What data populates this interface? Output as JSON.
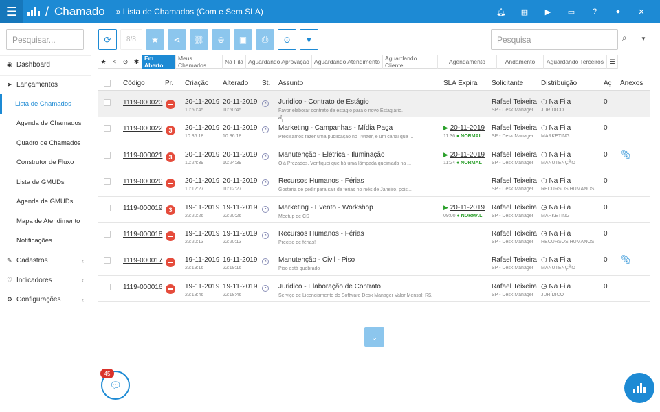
{
  "header": {
    "app_title": "Chamado",
    "separator": "/",
    "breadcrumb": "» Lista de Chamados (Com e Sem SLA)",
    "icons": [
      "bell-icon",
      "calculator-icon",
      "play-icon",
      "monitor-icon",
      "help-icon",
      "user-icon",
      "close-icon"
    ]
  },
  "sidebar": {
    "search_placeholder": "Pesquisar...",
    "items": [
      {
        "label": "Dashboard",
        "icon": "dashboard-icon"
      },
      {
        "label": "Lançamentos",
        "icon": "send-icon"
      },
      {
        "label": "Lista de Chamados"
      },
      {
        "label": "Agenda de Chamados"
      },
      {
        "label": "Quadro de Chamados"
      },
      {
        "label": "Construtor de Fluxo"
      },
      {
        "label": "Lista de GMUDs"
      },
      {
        "label": "Agenda de GMUDs"
      },
      {
        "label": "Mapa de Atendimento"
      },
      {
        "label": "Notificações"
      },
      {
        "label": "Cadastros",
        "icon": "edit-icon"
      },
      {
        "label": "Indicadores",
        "icon": "heart-icon"
      },
      {
        "label": "Configurações",
        "icon": "gear-icon"
      }
    ]
  },
  "toolbar": {
    "counter": "8/8",
    "search_placeholder": "Pesquisa"
  },
  "tabs": {
    "symbols": [
      "★",
      "<",
      "⊙",
      "✱"
    ],
    "labels": [
      "Em Aberto",
      "Meus Chamados",
      "Na Fila",
      "Aguardando Aprovação",
      "Aguardando Atendimento",
      "Aguardando Cliente",
      "Agendamento",
      "Andamento",
      "Aguardando Terceiros"
    ],
    "menu": "☰"
  },
  "table": {
    "headers": {
      "code": "Código",
      "priority": "Pr.",
      "created": "Criação",
      "changed": "Alterado",
      "status": "St.",
      "subject": "Assunto",
      "sla": "SLA Expira",
      "requester": "Solicitante",
      "distribution": "Distribuição",
      "actions": "Aç",
      "attachments": "Anexos"
    },
    "rows": [
      {
        "code": "1119-000023",
        "priority": "",
        "created_date": "20-11-2019",
        "created_time": "10:50:45",
        "changed_date": "20-11-2019",
        "changed_time": "10:50:45",
        "subject": "Juridico - Contrato de Estágio",
        "desc": "Favor elaborar contrato de estágio para o novo Estagiário.",
        "sla_date": "",
        "sla_time": "",
        "sla_status": "",
        "requester": "Rafael Teixeira",
        "requester_role": "SP - Desk Manager",
        "dist": "Na Fila",
        "dist_team": "JURÍDICO",
        "ac": "0",
        "attach": false
      },
      {
        "code": "1119-000022",
        "priority": "3",
        "created_date": "20-11-2019",
        "created_time": "10:36:18",
        "changed_date": "20-11-2019",
        "changed_time": "10:36:18",
        "subject": "Marketing - Campanhas - Mídia Paga",
        "desc": "Precisamos fazer uma publicação no Twitter, é um canal que ...",
        "sla_date": "20-11-2019",
        "sla_time": "11:36",
        "sla_status": "NORMAL",
        "requester": "Rafael Teixeira",
        "requester_role": "SP - Desk Manager",
        "dist": "Na Fila",
        "dist_team": "MARKETING",
        "ac": "0",
        "attach": false
      },
      {
        "code": "1119-000021",
        "priority": "3",
        "created_date": "20-11-2019",
        "created_time": "10:24:39",
        "changed_date": "20-11-2019",
        "changed_time": "10:24:39",
        "subject": "Manutenção - Elétrica - Iluminação",
        "desc": "Olá Prezados, Verifiquei que há uma lâmpada queimada na ...",
        "sla_date": "20-11-2019",
        "sla_time": "11:24",
        "sla_status": "NORMAL",
        "requester": "Rafael Teixeira",
        "requester_role": "SP - Desk Manager",
        "dist": "Na Fila",
        "dist_team": "MANUTENÇÃO",
        "ac": "0",
        "attach": true
      },
      {
        "code": "1119-000020",
        "priority": "",
        "created_date": "20-11-2019",
        "created_time": "10:12:27",
        "changed_date": "20-11-2019",
        "changed_time": "10:12:27",
        "subject": "Recursos Humanos - Férias",
        "desc": "Gostaria de pedir para sair de férias no mês de Janeiro, pois...",
        "sla_date": "",
        "sla_time": "",
        "sla_status": "",
        "requester": "Rafael Teixeira",
        "requester_role": "SP - Desk Manager",
        "dist": "Na Fila",
        "dist_team": "RECURSOS HUMANOS",
        "ac": "0",
        "attach": false
      },
      {
        "code": "1119-000019",
        "priority": "3",
        "created_date": "19-11-2019",
        "created_time": "22:20:26",
        "changed_date": "19-11-2019",
        "changed_time": "22:20:26",
        "subject": "Marketing - Evento - Workshop",
        "desc": "Meetup de CS",
        "sla_date": "20-11-2019",
        "sla_time": "09:00",
        "sla_status": "NORMAL",
        "requester": "Rafael Teixeira",
        "requester_role": "SP - Desk Manager",
        "dist": "Na Fila",
        "dist_team": "MARKETING",
        "ac": "0",
        "attach": false
      },
      {
        "code": "1119-000018",
        "priority": "",
        "created_date": "19-11-2019",
        "created_time": "22:20:13",
        "changed_date": "19-11-2019",
        "changed_time": "22:20:13",
        "subject": "Recursos Humanos - Férias",
        "desc": "Preciso de férias!",
        "sla_date": "",
        "sla_time": "",
        "sla_status": "",
        "requester": "Rafael Teixeira",
        "requester_role": "SP - Desk Manager",
        "dist": "Na Fila",
        "dist_team": "RECURSOS HUMANOS",
        "ac": "0",
        "attach": false
      },
      {
        "code": "1119-000017",
        "priority": "",
        "created_date": "19-11-2019",
        "created_time": "22:19:16",
        "changed_date": "19-11-2019",
        "changed_time": "22:19:16",
        "subject": "Manutenção - Civil - Piso",
        "desc": "Piso está quebrado",
        "sla_date": "",
        "sla_time": "",
        "sla_status": "",
        "requester": "Rafael Teixeira",
        "requester_role": "SP - Desk Manager",
        "dist": "Na Fila",
        "dist_team": "MANUTENÇÃO",
        "ac": "0",
        "attach": true
      },
      {
        "code": "1119-000016",
        "priority": "",
        "created_date": "19-11-2019",
        "created_time": "22:18:46",
        "changed_date": "19-11-2019",
        "changed_time": "22:18:46",
        "subject": "Juridico - Elaboração de Contrato",
        "desc": "Serviço de Licenciamento do Software Desk Manager Valor Mensal: R$...",
        "sla_date": "",
        "sla_time": "",
        "sla_status": "",
        "requester": "Rafael Teixeira",
        "requester_role": "SP - Desk Manager",
        "dist": "Na Fila",
        "dist_team": "JURÍDICO",
        "ac": "0",
        "attach": false
      }
    ]
  },
  "chat": {
    "badge": "45"
  },
  "colors": {
    "brand": "#1d8ad4",
    "danger": "#e54c3c",
    "sla_ok": "#2ca02c"
  }
}
